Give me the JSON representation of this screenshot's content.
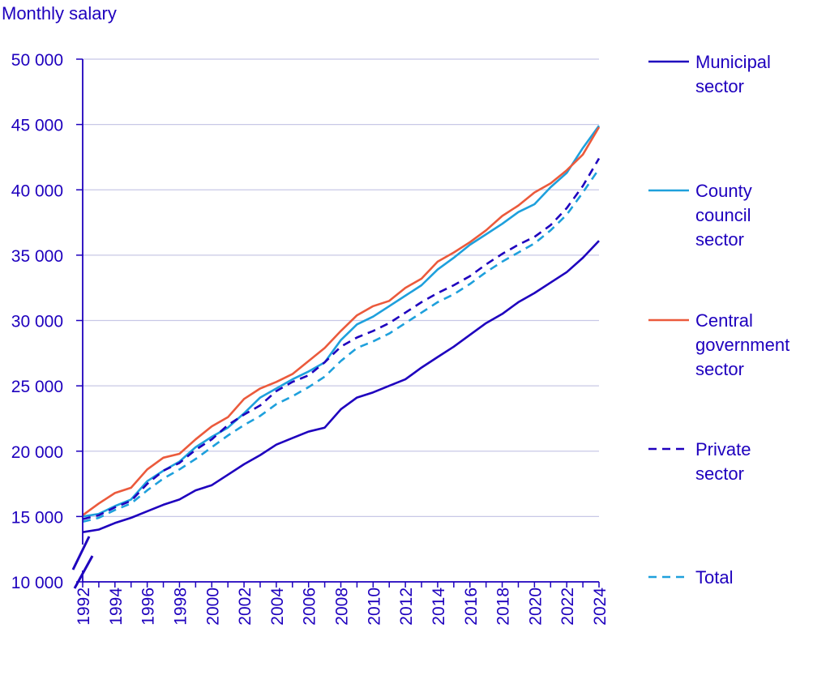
{
  "chart_data": {
    "type": "line",
    "ylabel": "Monthly salary",
    "xlabel": "",
    "ylim": [
      10000,
      50000
    ],
    "yticks": [
      {
        "value": 10000,
        "label": "10 000"
      },
      {
        "value": 15000,
        "label": "15 000"
      },
      {
        "value": 20000,
        "label": "20 000"
      },
      {
        "value": 25000,
        "label": "25 000"
      },
      {
        "value": 30000,
        "label": "30 000"
      },
      {
        "value": 35000,
        "label": "35 000"
      },
      {
        "value": 40000,
        "label": "40 000"
      },
      {
        "value": 45000,
        "label": "45 000"
      },
      {
        "value": 50000,
        "label": "50 000"
      }
    ],
    "xticks": [
      "1992",
      "1994",
      "1996",
      "1998",
      "2000",
      "2002",
      "2004",
      "2006",
      "2008",
      "2010",
      "2012",
      "2014",
      "2016",
      "2018",
      "2020",
      "2022",
      "2024"
    ],
    "x": [
      1992,
      1993,
      1994,
      1995,
      1996,
      1997,
      1998,
      1999,
      2000,
      2001,
      2002,
      2003,
      2004,
      2005,
      2006,
      2007,
      2008,
      2009,
      2010,
      2011,
      2012,
      2013,
      2014,
      2015,
      2016,
      2017,
      2018,
      2019,
      2020,
      2021,
      2022,
      2023,
      2024
    ],
    "axis_break": true,
    "grid": true,
    "legend_position": "right",
    "series": [
      {
        "name": "Municipal sector",
        "legend_lines": [
          "Municipal",
          "sector"
        ],
        "color": "#1e00be",
        "dash": false,
        "values": [
          13800,
          14000,
          14500,
          14900,
          15400,
          15900,
          16300,
          17000,
          17400,
          18200,
          19000,
          19700,
          20500,
          21000,
          21500,
          21800,
          23200,
          24100,
          24500,
          25000,
          25500,
          26400,
          27200,
          28000,
          28900,
          29800,
          30500,
          31400,
          32100,
          32900,
          33700,
          34800,
          36100
        ]
      },
      {
        "name": "County council sector",
        "legend_lines": [
          "County",
          "council",
          "sector"
        ],
        "color": "#1ea0dc",
        "dash": false,
        "values": [
          15000,
          15200,
          15800,
          16300,
          17700,
          18500,
          19200,
          20300,
          21100,
          21800,
          22900,
          24100,
          24800,
          25500,
          26100,
          26800,
          28500,
          29700,
          30300,
          31100,
          31900,
          32700,
          33900,
          34800,
          35800,
          36600,
          37400,
          38300,
          38900,
          40200,
          41300,
          43200,
          44900
        ]
      },
      {
        "name": "Central government sector",
        "legend_lines": [
          "Central",
          "government",
          "sector"
        ],
        "color": "#eb5a3c",
        "dash": false,
        "values": [
          15100,
          16000,
          16800,
          17200,
          18600,
          19500,
          19800,
          20900,
          21900,
          22600,
          24000,
          24800,
          25300,
          25900,
          26900,
          27900,
          29200,
          30400,
          31100,
          31500,
          32500,
          33200,
          34500,
          35200,
          36000,
          36900,
          38000,
          38800,
          39800,
          40500,
          41500,
          42700,
          44800
        ]
      },
      {
        "name": "Private sector",
        "legend_lines": [
          "Private",
          "sector"
        ],
        "color": "#1e00be",
        "dash": true,
        "values": [
          14800,
          15100,
          15700,
          16200,
          17500,
          18500,
          19100,
          20100,
          20900,
          22000,
          22800,
          23500,
          24600,
          25300,
          25800,
          26800,
          28000,
          28700,
          29200,
          29800,
          30600,
          31400,
          32100,
          32700,
          33400,
          34300,
          35100,
          35800,
          36400,
          37300,
          38600,
          40300,
          42400
        ]
      },
      {
        "name": "Total",
        "legend_lines": [
          "Total"
        ],
        "color": "#1ea0dc",
        "dash": true,
        "values": [
          14600,
          14900,
          15500,
          16000,
          17000,
          17900,
          18600,
          19400,
          20300,
          21200,
          22000,
          22700,
          23600,
          24200,
          24900,
          25700,
          26900,
          27900,
          28400,
          29000,
          29800,
          30600,
          31400,
          32000,
          32800,
          33700,
          34500,
          35200,
          35900,
          36900,
          38100,
          39800,
          41600
        ]
      }
    ]
  }
}
